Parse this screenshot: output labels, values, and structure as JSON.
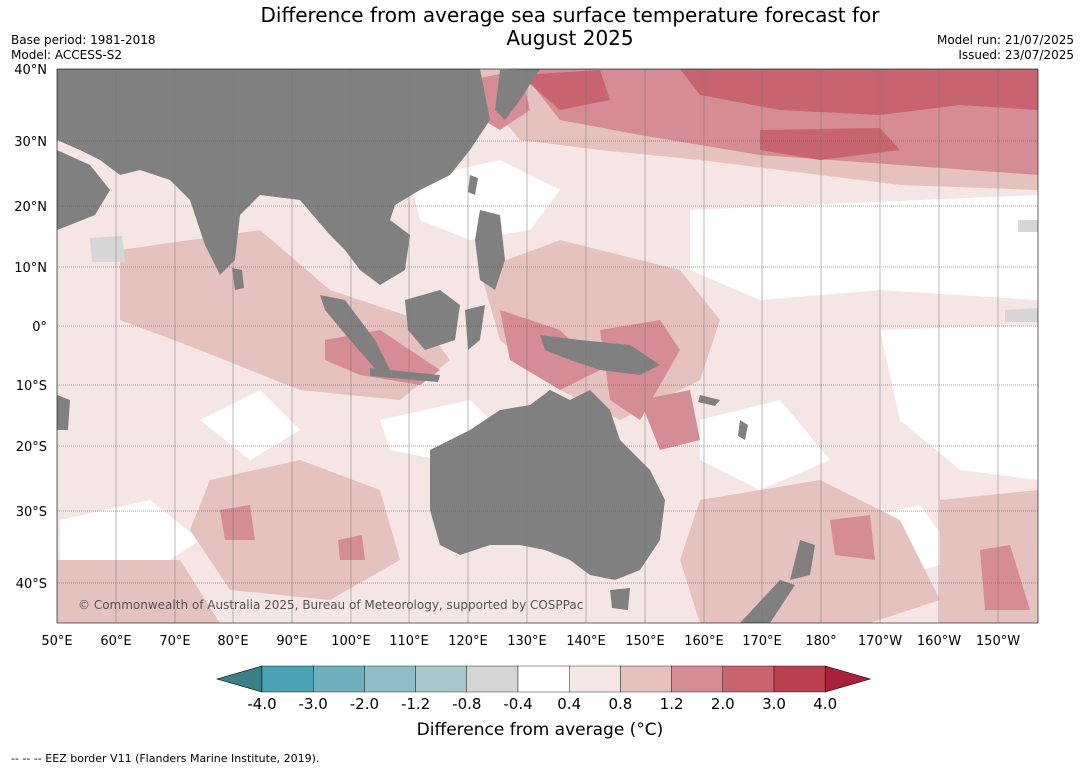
{
  "title_line1": "Difference from average sea surface temperature forecast for",
  "title_line2": "August 2025",
  "base_period": "Base period: 1981-2018",
  "model": "Model: ACCESS-S2",
  "model_run": "Model run: 21/07/2025",
  "issued": "Issued: 23/07/2025",
  "lat_labels": [
    "40°N",
    "30°N",
    "20°N",
    "10°N",
    "0°",
    "10°S",
    "20°S",
    "30°S",
    "40°S"
  ],
  "lon_labels": [
    "50°E",
    "60°E",
    "70°E",
    "80°E",
    "90°E",
    "100°E",
    "110°E",
    "120°E",
    "130°E",
    "140°E",
    "150°E",
    "160°E",
    "170°E",
    "180°",
    "170°W",
    "160°W",
    "150°W"
  ],
  "credit": "© Commonwealth of Australia 2025, Bureau of Meteorology, supported by COSPPac",
  "colorbar": {
    "title": "Difference from average (°C)",
    "ticks": [
      "-4.0",
      "-3.0",
      "-2.0",
      "-1.2",
      "-0.8",
      "-0.4",
      "0.4",
      "0.8",
      "1.2",
      "2.0",
      "3.0",
      "4.0"
    ],
    "colors": [
      "#3d7f88",
      "#4aa2b3",
      "#6eb0be",
      "#8fbcc6",
      "#a8c8cc",
      "#d6d6d6",
      "#ffffff",
      "#f5e6e5",
      "#e6c2bf",
      "#d58c94",
      "#c8646f",
      "#bb404f",
      "#a8203a"
    ]
  },
  "colors": {
    "land": "#808080",
    "ocean_base": "#f5e6e5",
    "gridline": "#666666"
  },
  "footer": "--  --  -- EEZ border V11 (Flanders Marine Institute, 2019)."
}
